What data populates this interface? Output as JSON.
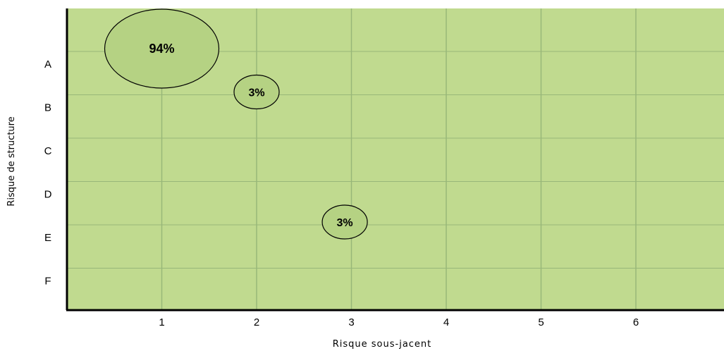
{
  "chart_data": {
    "type": "scatter",
    "title": "",
    "xlabel": "Risque sous-jacent",
    "ylabel": "Risque de structure",
    "xlim": [
      0,
      6.9
    ],
    "x_ticks": [
      "1",
      "2",
      "3",
      "4",
      "5",
      "6"
    ],
    "y_categories": [
      "A",
      "B",
      "C",
      "D",
      "E",
      "F"
    ],
    "grid": true,
    "colors": {
      "plot_background": "#c0da8f",
      "bubble_fill": "#b5d283",
      "grid": "#98b779",
      "axis": "#000000"
    },
    "points": [
      {
        "x": 1,
        "y": "A",
        "value": 94,
        "label": "94%"
      },
      {
        "x": 2,
        "y": "B",
        "value": 3,
        "label": "3%"
      },
      {
        "x": 2.93,
        "y": "E",
        "value": 3,
        "label": "3%"
      }
    ]
  }
}
